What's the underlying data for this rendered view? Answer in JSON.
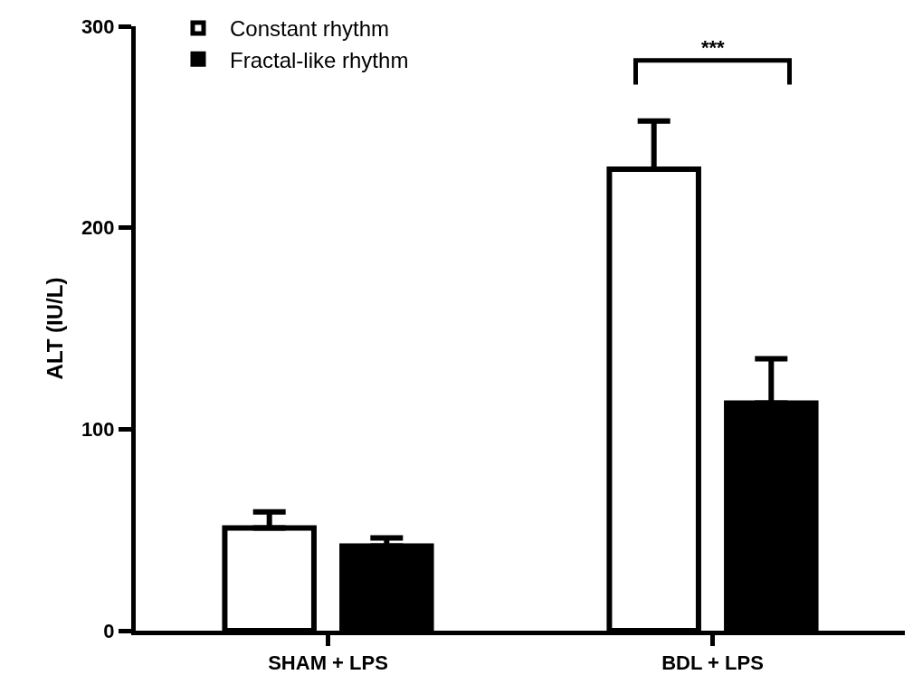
{
  "chart_data": {
    "type": "bar",
    "ylabel": "ALT (IU/L)",
    "categories": [
      "SHAM + LPS",
      "BDL + LPS"
    ],
    "series": [
      {
        "name": "Constant rhythm",
        "color": "#ffffff",
        "values": [
          51,
          229
        ],
        "errors": [
          [
            51,
            59
          ],
          [
            229,
            253
          ]
        ]
      },
      {
        "name": "Fractal-like rhythm",
        "color": "#000000",
        "values": [
          42,
          113
        ],
        "errors": [
          [
            42,
            46
          ],
          [
            113,
            135
          ]
        ]
      }
    ],
    "ylim": [
      0,
      300
    ],
    "yticks": [
      0,
      100,
      200,
      300
    ],
    "legend": "top left",
    "annotations": [
      "***"
    ]
  }
}
